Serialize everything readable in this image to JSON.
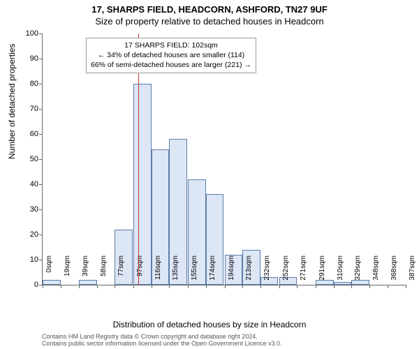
{
  "title_main": "17, SHARPS FIELD, HEADCORN, ASHFORD, TN27 9UF",
  "title_sub": "Size of property relative to detached houses in Headcorn",
  "ylabel": "Number of detached properties",
  "xlabel": "Distribution of detached houses by size in Headcorn",
  "chart": {
    "type": "histogram",
    "ylim": [
      0,
      100
    ],
    "ytick_step": 10,
    "bar_fill": "#dce6f5",
    "bar_border": "#5b7da8",
    "vline_color": "#c83232",
    "vline_x_sqm": 102,
    "background_color": "#ffffff",
    "x_categories_sqm": [
      0,
      19,
      39,
      58,
      77,
      97,
      116,
      135,
      155,
      174,
      194,
      213,
      232,
      252,
      271,
      291,
      310,
      329,
      348,
      368,
      387
    ],
    "values": [
      2,
      0,
      2,
      0,
      22,
      80,
      54,
      58,
      42,
      36,
      12,
      14,
      3,
      3,
      0,
      2,
      1,
      2,
      0,
      0,
      0
    ]
  },
  "info_box": {
    "line1": "17 SHARPS FIELD: 102sqm",
    "line2": "← 34% of detached houses are smaller (114)",
    "line3": "66% of semi-detached houses are larger (221) →"
  },
  "footer": {
    "line1": "Contains HM Land Registry data © Crown copyright and database right 2024.",
    "line2": "Contains public sector information licensed under the Open Government Licence v3.0."
  },
  "fonts": {
    "title_size": 13,
    "label_size": 12,
    "tick_size": 11
  }
}
